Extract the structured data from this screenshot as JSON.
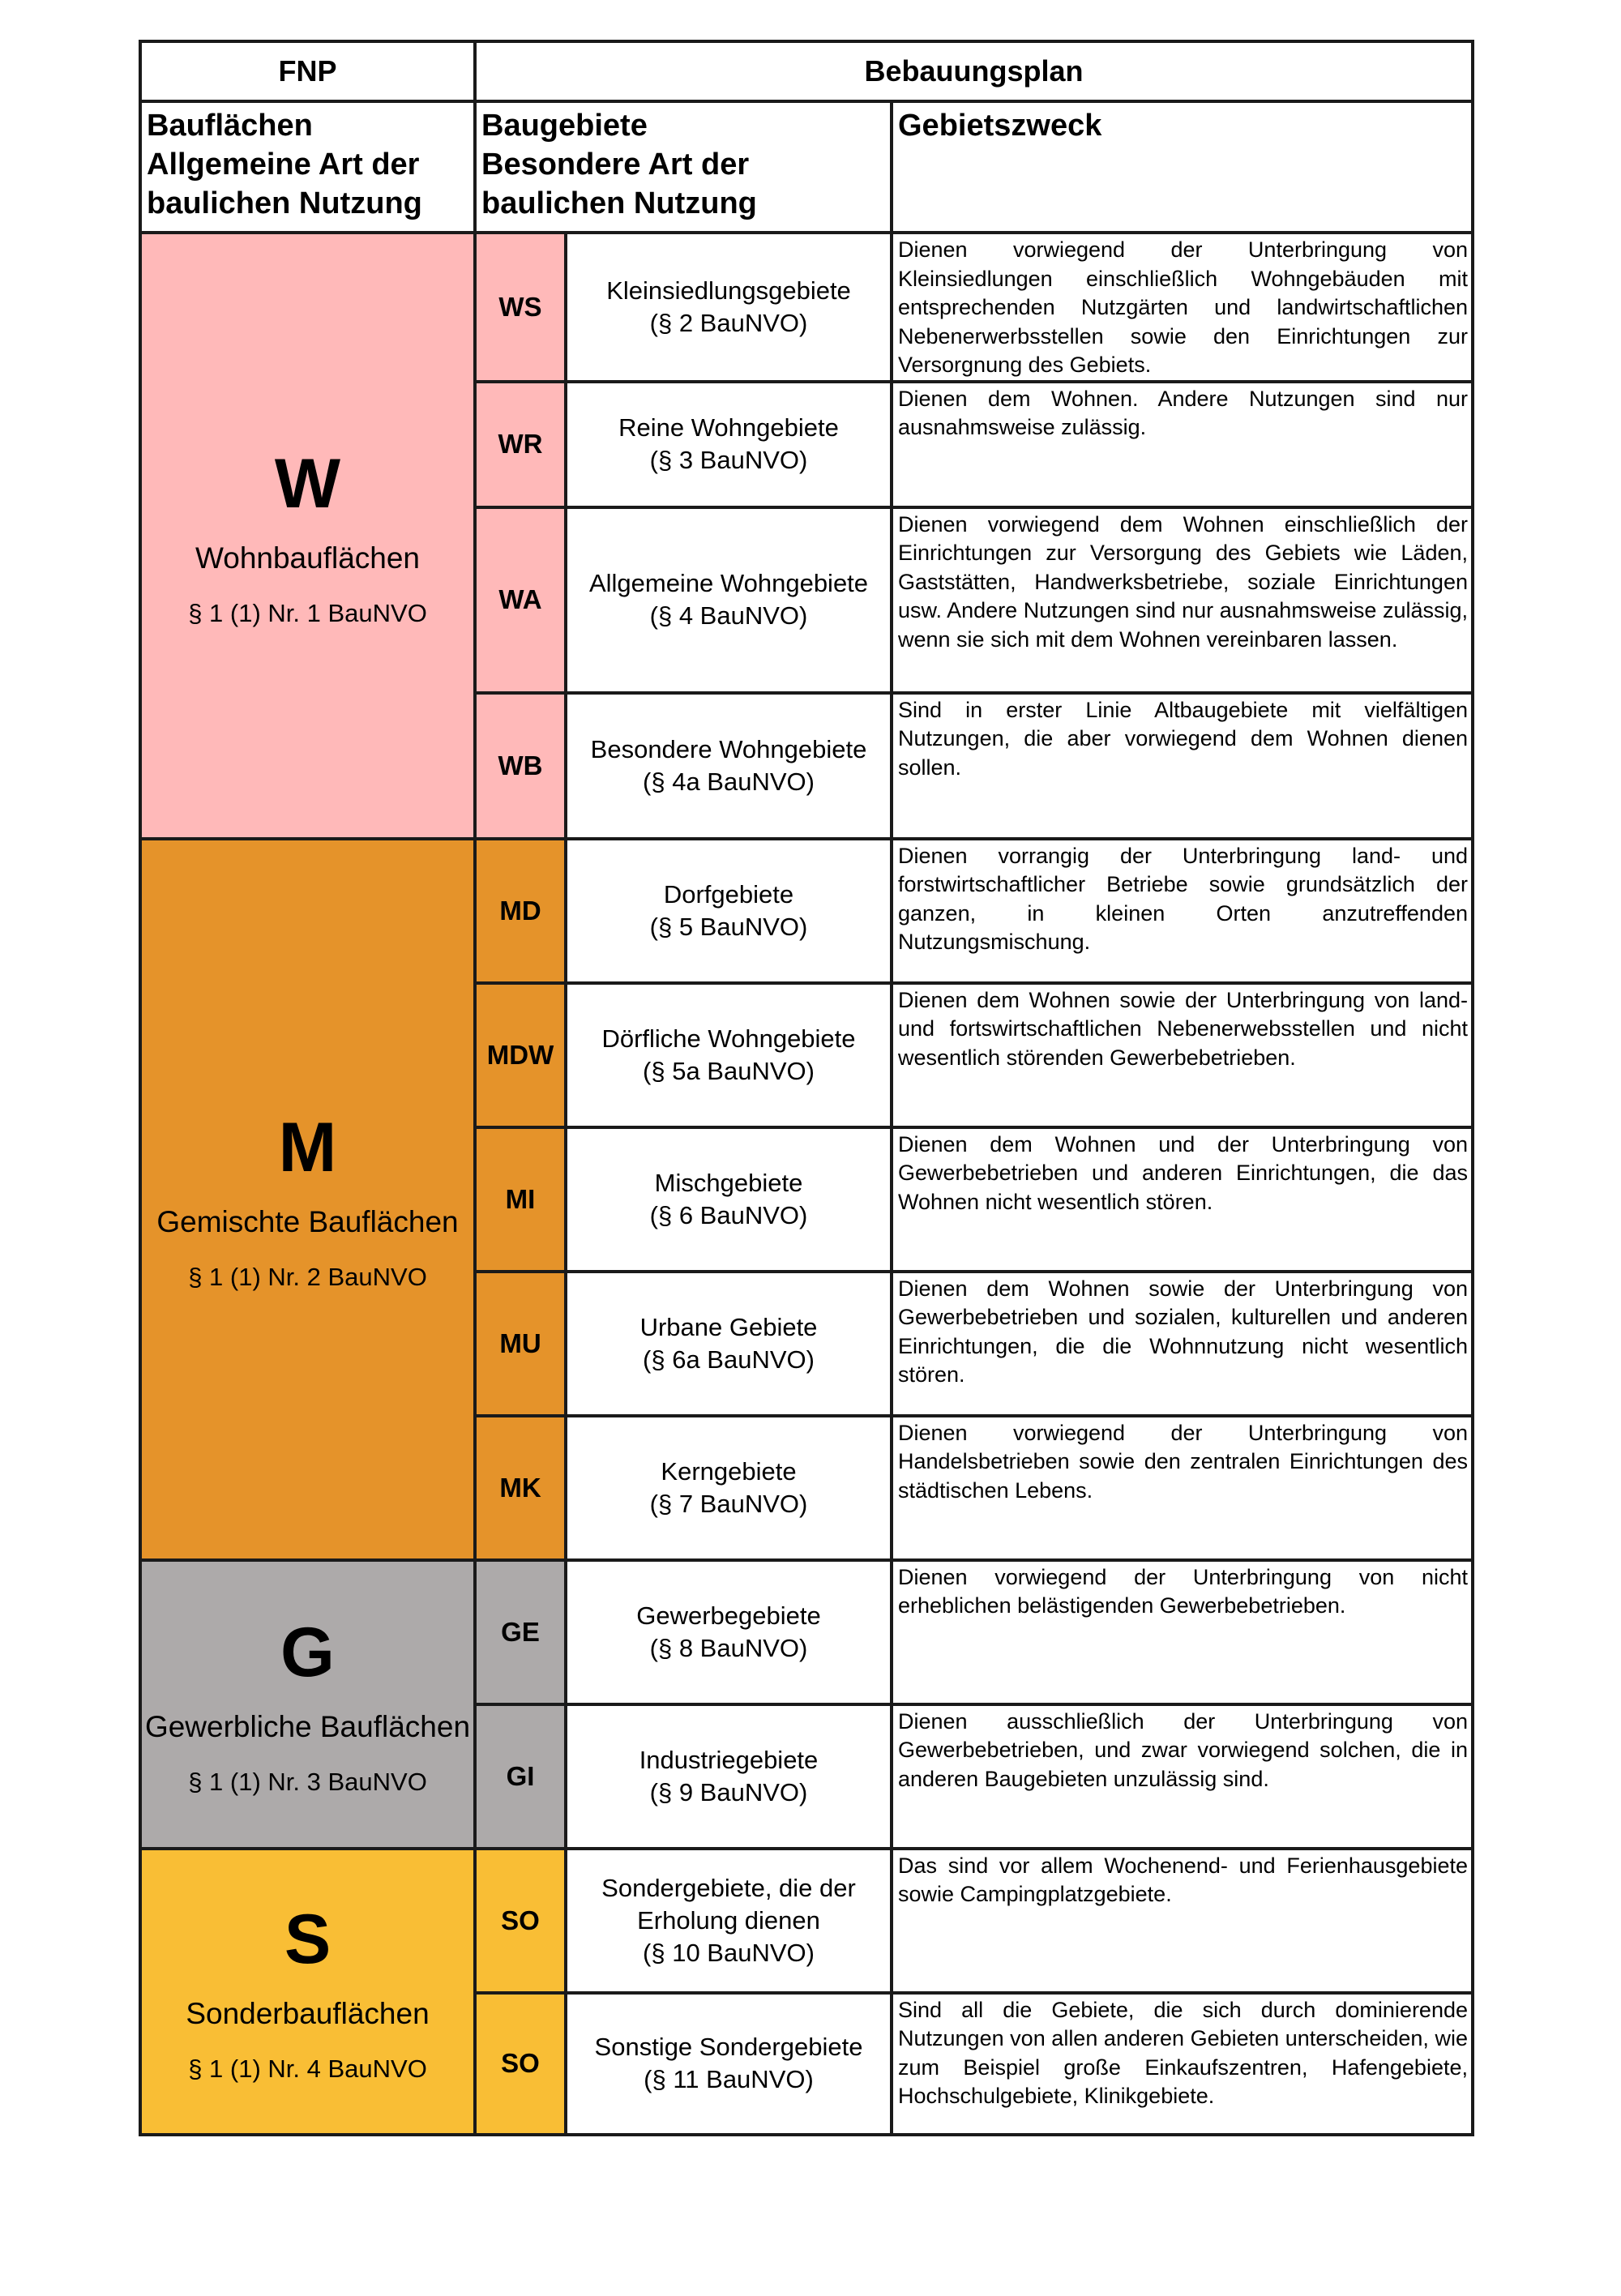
{
  "header": {
    "fnp": "FNP",
    "bebauungsplan": "Bebauungsplan",
    "col1": [
      "Bauflächen",
      "Allgemeine Art der",
      "baulichen Nutzung"
    ],
    "col2": [
      "Baugebiete",
      "Besondere Art der",
      "baulichen Nutzung"
    ],
    "col3": "Gebietszweck"
  },
  "colors": {
    "W": "#FFB9B9",
    "M": "#E5932A",
    "G": "#ADAAAA",
    "S": "#F9BE35"
  },
  "groups": [
    {
      "letter": "W",
      "name": "Wohnbauflächen",
      "paragraph": "§ 1 (1) Nr. 1 BauNVO"
    },
    {
      "letter": "M",
      "name": "Gemischte Bauflächen",
      "paragraph": "§ 1 (1) Nr. 2 BauNVO"
    },
    {
      "letter": "G",
      "name": "Gewerbliche Bauflächen",
      "paragraph": "§ 1 (1) Nr. 3 BauNVO"
    },
    {
      "letter": "S",
      "name": "Sonderbauflächen",
      "paragraph": "§ 1 (1) Nr. 4 BauNVO"
    }
  ],
  "rows": [
    {
      "code": "WS",
      "name": "Kleinsiedlungsgebiete",
      "ref": "(§ 2 BauNVO)",
      "purpose": "Dienen vorwiegend der Unterbringung von Kleinsiedlungen einschließlich Wohngebäuden mit entsprechenden Nutzgärten und landwirtschaftlichen Nebenerwerbsstellen sowie den Einrichtungen zur Versorgnung des Gebiets."
    },
    {
      "code": "WR",
      "name": "Reine Wohngebiete",
      "ref": "(§ 3 BauNVO)",
      "purpose": "Dienen dem Wohnen. Andere Nutzungen sind nur ausnahmsweise zulässig."
    },
    {
      "code": "WA",
      "name": "Allgemeine Wohngebiete",
      "ref": "(§ 4 BauNVO)",
      "purpose": "Dienen vorwiegend dem Wohnen einschließlich der Einrichtungen zur Versorgung des Gebiets wie Läden, Gaststätten, Handwerksbetriebe, soziale Einrichtungen usw. Andere Nutzungen sind nur ausnahmsweise zulässig, wenn sie sich mit dem Wohnen vereinbaren lassen."
    },
    {
      "code": "WB",
      "name": "Besondere Wohngebiete",
      "ref": "(§ 4a BauNVO)",
      "purpose": "Sind in erster Linie Altbaugebiete mit vielfältigen Nutzungen, die aber vorwiegend dem Wohnen dienen sollen."
    },
    {
      "code": "MD",
      "name": "Dorfgebiete",
      "ref": "(§ 5 BauNVO)",
      "purpose": "Dienen vorrangig der Unterbringung land- und forstwirtschaftlicher Betriebe sowie grundsätzlich der ganzen, in kleinen Orten anzutreffenden Nutzungsmischung."
    },
    {
      "code": "MDW",
      "name": "Dörfliche Wohngebiete",
      "ref": "(§ 5a BauNVO)",
      "purpose": "Dienen dem Wohnen sowie der Unterbringung von land- und fortswirtschaftlichen Nebenerwebsstellen und nicht wesentlich störenden Gewerbebetrieben."
    },
    {
      "code": "MI",
      "name": "Mischgebiete",
      "ref": "(§ 6 BauNVO)",
      "purpose": "Dienen dem Wohnen und der Unterbringung von Gewerbebetrieben und anderen Einrichtungen, die das Wohnen nicht wesentlich stören."
    },
    {
      "code": "MU",
      "name": "Urbane Gebiete",
      "ref": "(§ 6a BauNVO)",
      "purpose": "Dienen dem Wohnen sowie der Unterbringung von Gewerbebetrieben und sozialen, kulturellen und anderen Einrichtungen, die die Wohnnutzung nicht wesentlich stören."
    },
    {
      "code": "MK",
      "name": "Kerngebiete",
      "ref": "(§ 7 BauNVO)",
      "purpose": "Dienen vorwiegend der Unterbringung von Handelsbetrieben sowie den zentralen Einrichtungen des städtischen Lebens."
    },
    {
      "code": "GE",
      "name": "Gewerbegebiete",
      "ref": "(§ 8 BauNVO)",
      "purpose": "Dienen vorwiegend der Unterbringung von nicht erheblichen belästigenden Gewerbebetrieben."
    },
    {
      "code": "GI",
      "name": "Industriegebiete",
      "ref": "(§ 9 BauNVO)",
      "purpose": "Dienen ausschließlich der Unterbringung von Gewerbebetrieben, und zwar vorwiegend solchen, die in anderen Baugebieten unzulässig sind."
    },
    {
      "code": "SO",
      "name": "Sondergebiete, die der Erholung dienen",
      "ref": "(§ 10 BauNVO)",
      "purpose": "Das sind vor allem Wochenend- und Ferienhausgebiete sowie Campingplatzgebiete."
    },
    {
      "code": "SO",
      "name": "Sonstige Sondergebiete",
      "ref": "(§ 11 BauNVO)",
      "purpose": "Sind all die Gebiete, die sich durch dominierende Nutzungen von allen anderen Gebieten unterscheiden, wie zum Beispiel große Einkaufszentren, Hafengebiete, Hochschulgebiete, Klinikgebiete."
    }
  ]
}
